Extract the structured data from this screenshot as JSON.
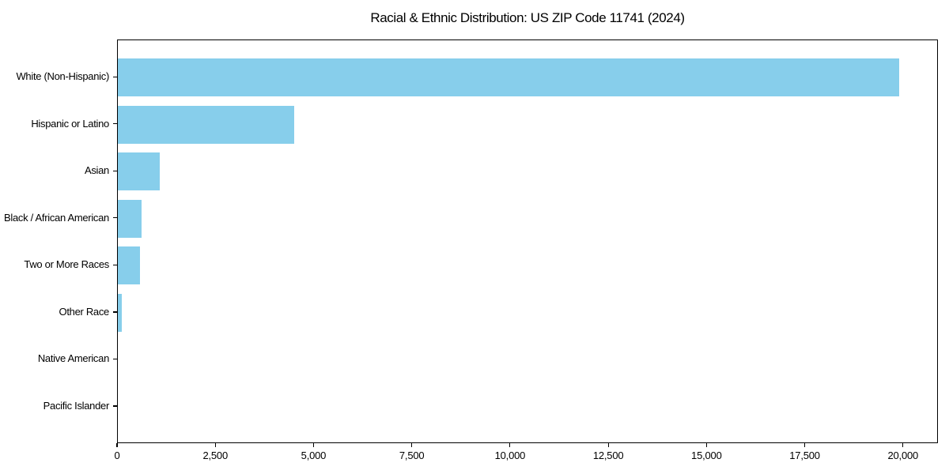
{
  "title": "Racial & Ethnic Distribution: US ZIP Code 11741 (2024)",
  "chart_data": {
    "type": "bar",
    "orientation": "horizontal",
    "title": "Racial & Ethnic Distribution: US ZIP Code 11741 (2024)",
    "categories": [
      "White (Non-Hispanic)",
      "Hispanic or Latino",
      "Asian",
      "Black / African American",
      "Two or More Races",
      "Other Race",
      "Native American",
      "Pacific Islander"
    ],
    "values": [
      19890,
      4495,
      1060,
      605,
      570,
      90,
      0,
      0
    ],
    "xlabel": "",
    "ylabel": "",
    "xlim": [
      0,
      20890
    ],
    "x_ticks": [
      0,
      2500,
      5000,
      7500,
      10000,
      12500,
      15000,
      17500,
      20000
    ],
    "x_tick_labels": [
      "0",
      "2,500",
      "5,000",
      "7,500",
      "10,000",
      "12,500",
      "15,000",
      "17,500",
      "20,000"
    ],
    "bar_color": "#87CEEB",
    "spine_color": "#000000",
    "text_color": "#000000",
    "grid": false,
    "legend": null
  }
}
